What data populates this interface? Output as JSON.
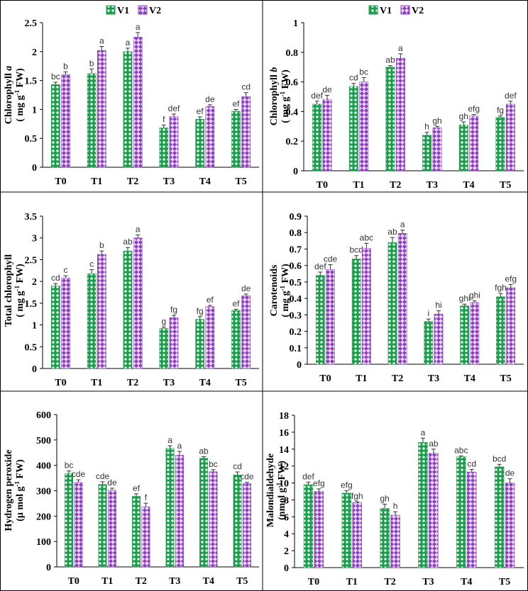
{
  "colors": {
    "v1_fill": "#1f9a4f",
    "v1_dot": "#dff5e6",
    "v2_fill": "#8b3fb8",
    "v2_dot": "#e9d4f5",
    "axis": "#000000",
    "grid_border": "#000000"
  },
  "legend": {
    "v1": "V1",
    "v2": "V2"
  },
  "chart_data": [
    {
      "id": "chlorophyll-a",
      "type": "bar",
      "ylabel_line1": "Chlorophyll a",
      "ylabel_line2": "( mg g-1 FW)",
      "categories": [
        "T0",
        "T1",
        "T2",
        "T3",
        "T4",
        "T5"
      ],
      "ylim": [
        0,
        2.5
      ],
      "yticks": [
        "0",
        "0.5",
        "1",
        "1.5",
        "2",
        "2.5"
      ],
      "series": [
        {
          "name": "V1",
          "values": [
            1.43,
            1.62,
            2.0,
            0.68,
            0.83,
            0.97
          ],
          "errors": [
            0.04,
            0.08,
            0.06,
            0.05,
            0.04,
            0.03
          ],
          "letters": [
            "bc",
            "b",
            "a",
            "f",
            "ef",
            "ef"
          ]
        },
        {
          "name": "V2",
          "values": [
            1.6,
            2.02,
            2.25,
            0.88,
            1.05,
            1.22
          ],
          "errors": [
            0.05,
            0.07,
            0.08,
            0.04,
            0.03,
            0.07
          ],
          "letters": [
            "b",
            "a",
            "a",
            "def",
            "de",
            "cd"
          ]
        }
      ],
      "show_legend": true
    },
    {
      "id": "chlorophyll-b",
      "type": "bar",
      "ylabel_line1": "Chlorophyll b",
      "ylabel_line2": "( mg g-1 FW)",
      "categories": [
        "T0",
        "T1",
        "T2",
        "T3",
        "T4",
        "T5"
      ],
      "ylim": [
        0,
        1
      ],
      "yticks": [
        "0",
        "0.2",
        "0.4",
        "0.6",
        "0.8",
        "1"
      ],
      "series": [
        {
          "name": "V1",
          "values": [
            0.45,
            0.57,
            0.7,
            0.24,
            0.31,
            0.36
          ],
          "errors": [
            0.02,
            0.02,
            0.01,
            0.02,
            0.02,
            0.01
          ],
          "letters": [
            "def",
            "cd",
            "ab",
            "h",
            "gh",
            "fg"
          ]
        },
        {
          "name": "V2",
          "values": [
            0.48,
            0.6,
            0.76,
            0.29,
            0.37,
            0.45
          ],
          "errors": [
            0.03,
            0.03,
            0.03,
            0.01,
            0.01,
            0.02
          ],
          "letters": [
            "de",
            "bc",
            "a",
            "gh",
            "efg",
            "def"
          ]
        }
      ],
      "show_legend": true
    },
    {
      "id": "total-chlorophyll",
      "type": "bar",
      "ylabel_line1": "Total chlorophyll",
      "ylabel_line2": "( mg g-1 FW)",
      "categories": [
        "T0",
        "T1",
        "T2",
        "T3",
        "T4",
        "T5"
      ],
      "ylim": [
        0,
        3.5
      ],
      "yticks": [
        "0",
        "0.5",
        "1",
        "1.5",
        "2",
        "2.5",
        "3",
        "3.5"
      ],
      "series": [
        {
          "name": "V1",
          "values": [
            1.9,
            2.18,
            2.7,
            0.92,
            1.13,
            1.33
          ],
          "errors": [
            0.05,
            0.09,
            0.08,
            0.03,
            0.06,
            0.03
          ],
          "letters": [
            "cd",
            "c",
            "ab",
            "g",
            "fg",
            "ef"
          ]
        },
        {
          "name": "V2",
          "values": [
            2.08,
            2.62,
            3.0,
            1.17,
            1.42,
            1.67
          ],
          "errors": [
            0.05,
            0.08,
            0.07,
            0.05,
            0.03,
            0.04
          ],
          "letters": [
            "c",
            "b",
            "a",
            "fg",
            "ef",
            "de"
          ]
        }
      ],
      "show_legend": false
    },
    {
      "id": "carotenoids",
      "type": "bar",
      "ylabel_line1": "Carotenoids",
      "ylabel_line2": "( mg g-1 FW)",
      "categories": [
        "T0",
        "T1",
        "T2",
        "T3",
        "T4",
        "T5"
      ],
      "ylim": [
        0,
        0.9
      ],
      "yticks": [
        "0",
        "0.1",
        "0.2",
        "0.3",
        "0.4",
        "0.5",
        "0.6",
        "0.7",
        "0.8",
        "0.9"
      ],
      "series": [
        {
          "name": "V1",
          "values": [
            0.54,
            0.64,
            0.74,
            0.26,
            0.355,
            0.41
          ],
          "errors": [
            0.02,
            0.02,
            0.03,
            0.015,
            0.01,
            0.02
          ],
          "letters": [
            "def",
            "bcd",
            "ab",
            "i",
            "ghi",
            "fgh"
          ]
        },
        {
          "name": "V2",
          "values": [
            0.575,
            0.705,
            0.795,
            0.305,
            0.375,
            0.465
          ],
          "errors": [
            0.03,
            0.03,
            0.02,
            0.02,
            0.01,
            0.02
          ],
          "letters": [
            "cde",
            "abc",
            "a",
            "hi",
            "ghi",
            "efg"
          ]
        }
      ],
      "show_legend": false
    },
    {
      "id": "hydrogen-peroxide",
      "type": "bar",
      "ylabel_line1": "Hydrogen peroxide",
      "ylabel_line2": "(µ mol g-1 FW)",
      "categories": [
        "T0",
        "T1",
        "T2",
        "T3",
        "T4",
        "T5"
      ],
      "ylim": [
        0,
        600
      ],
      "yticks": [
        "0",
        "100",
        "200",
        "300",
        "400",
        "500",
        "600"
      ],
      "series": [
        {
          "name": "V1",
          "values": [
            368,
            325,
            278,
            467,
            428,
            362
          ],
          "errors": [
            10,
            10,
            10,
            10,
            6,
            12
          ],
          "letters": [
            "bc",
            "cde",
            "ef",
            "a",
            "ab",
            "cd"
          ]
        },
        {
          "name": "V2",
          "values": [
            333,
            302,
            237,
            440,
            375,
            328
          ],
          "errors": [
            10,
            8,
            14,
            15,
            8,
            5
          ],
          "letters": [
            "cde",
            "de",
            "f",
            "a",
            "bc",
            "cde"
          ]
        }
      ],
      "show_legend": false
    },
    {
      "id": "malondialdehyde",
      "type": "bar",
      "ylabel_line1": "Malondialdehyde",
      "ylabel_line2": "(nmol g-1 FW)",
      "categories": [
        "T0",
        "T1",
        "T2",
        "T3",
        "T4",
        "T5"
      ],
      "ylim": [
        0,
        18
      ],
      "yticks": [
        "0",
        "2",
        "4",
        "6",
        "8",
        "10",
        "12",
        "14",
        "16",
        "18"
      ],
      "series": [
        {
          "name": "V1",
          "values": [
            9.8,
            8.8,
            7.0,
            14.8,
            13.1,
            11.9
          ],
          "errors": [
            0.3,
            0.3,
            0.5,
            0.5,
            0.1,
            0.3
          ],
          "letters": [
            "def",
            "efg",
            "gh",
            "a",
            "abc",
            "bcd"
          ]
        },
        {
          "name": "V2",
          "values": [
            9.0,
            7.7,
            6.2,
            13.5,
            11.3,
            10.0
          ],
          "errors": [
            0.3,
            0.1,
            0.4,
            0.5,
            0.3,
            0.5
          ],
          "letters": [
            "efg",
            "fgh",
            "h",
            "ab",
            "cd",
            "de"
          ]
        }
      ],
      "show_legend": false
    }
  ]
}
